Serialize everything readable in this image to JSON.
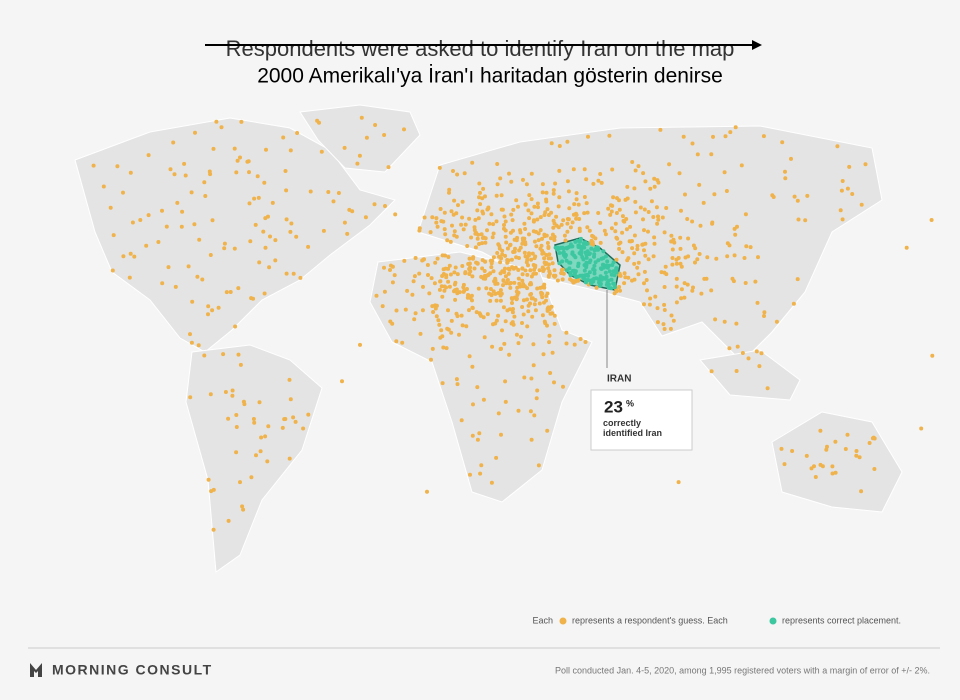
{
  "header": {
    "original_title": "Respondents were asked to identify Iran on the map",
    "overlay_title": "2000 Amerikalı'ya İran'ı haritadan gösterin denirse"
  },
  "callout": {
    "label": "IRAN",
    "percent": "23",
    "percent_sign": "%",
    "text": "correctly identified Iran"
  },
  "legend": {
    "each_1": "Each",
    "guess": "represents a respondent's guess. Each",
    "correct": "represents correct placement."
  },
  "footer": {
    "brand": "MORNING CONSULT",
    "note": "Poll conducted Jan. 4-5, 2020, among 1,995 registered voters with a margin of error of +/- 2%."
  }
}
